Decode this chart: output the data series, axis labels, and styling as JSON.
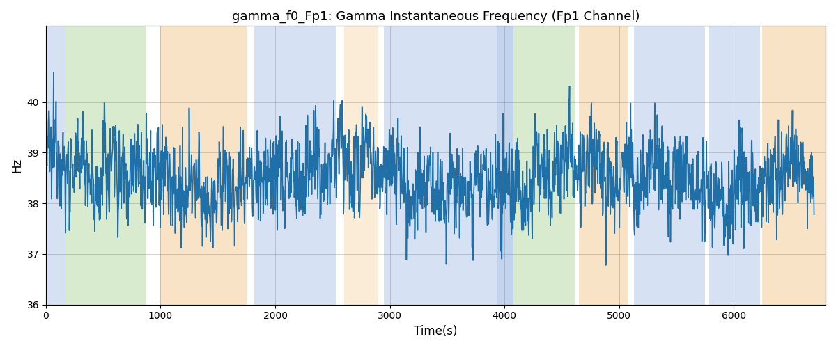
{
  "title": "gamma_f0_Fp1: Gamma Instantaneous Frequency (Fp1 Channel)",
  "xlabel": "Time(s)",
  "ylabel": "Hz",
  "ylim": [
    36,
    41.5
  ],
  "xlim": [
    0,
    6800
  ],
  "yticks": [
    36,
    37,
    38,
    39,
    40
  ],
  "line_color": "#1f6fa8",
  "line_width": 1.2,
  "bg_regions": [
    {
      "xmin": 0,
      "xmax": 170,
      "color": "#aec6e8",
      "alpha": 0.5
    },
    {
      "xmin": 170,
      "xmax": 870,
      "color": "#b5d9a0",
      "alpha": 0.5
    },
    {
      "xmin": 990,
      "xmax": 1750,
      "color": "#f5c990",
      "alpha": 0.5
    },
    {
      "xmin": 1820,
      "xmax": 2530,
      "color": "#aec6e8",
      "alpha": 0.5
    },
    {
      "xmin": 2600,
      "xmax": 2900,
      "color": "#f5c990",
      "alpha": 0.35
    },
    {
      "xmin": 2950,
      "xmax": 3930,
      "color": "#aec6e8",
      "alpha": 0.5
    },
    {
      "xmin": 3930,
      "xmax": 4080,
      "color": "#aec6e8",
      "alpha": 0.75
    },
    {
      "xmin": 4080,
      "xmax": 4620,
      "color": "#b5d9a0",
      "alpha": 0.5
    },
    {
      "xmin": 4650,
      "xmax": 5080,
      "color": "#f5c990",
      "alpha": 0.5
    },
    {
      "xmin": 5130,
      "xmax": 5750,
      "color": "#aec6e8",
      "alpha": 0.5
    },
    {
      "xmin": 5780,
      "xmax": 6230,
      "color": "#aec6e8",
      "alpha": 0.5
    },
    {
      "xmin": 6250,
      "xmax": 6800,
      "color": "#f5c990",
      "alpha": 0.5
    }
  ],
  "seed": 12345,
  "n_points": 2200,
  "t_max": 6700,
  "base_freq": 38.5,
  "noise_std": 0.38,
  "figsize": [
    12,
    5
  ],
  "dpi": 100
}
